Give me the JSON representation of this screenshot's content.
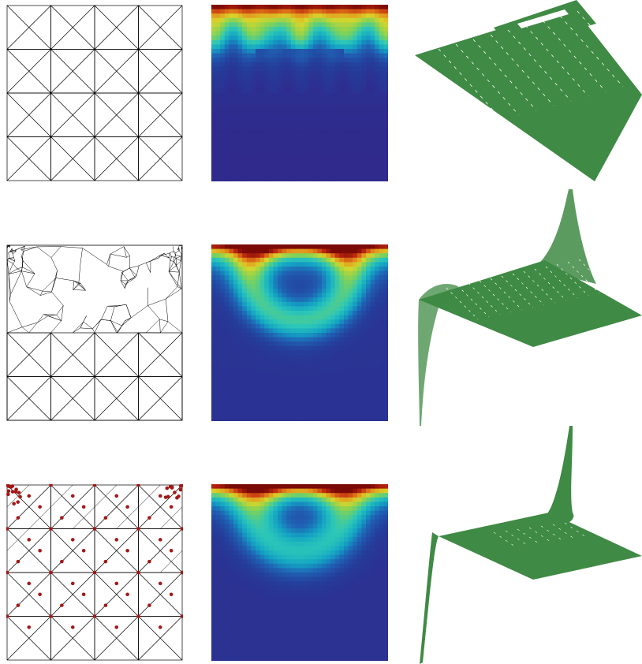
{
  "figure": {
    "rows": [
      {
        "id": "uniform-mesh"
      },
      {
        "id": "adaptive-mesh"
      },
      {
        "id": "mesh-with-points"
      }
    ]
  },
  "colors": {
    "mesh_line": "#000000",
    "point": "#a31717",
    "surface": "#3f8a44",
    "colormap": [
      "#2f2a8c",
      "#243f9c",
      "#1f63b4",
      "#13a3c4",
      "#2cc7b8",
      "#7cd25a",
      "#d8d62a",
      "#e58a1a",
      "#c12a10",
      "#7a0a06"
    ]
  }
}
